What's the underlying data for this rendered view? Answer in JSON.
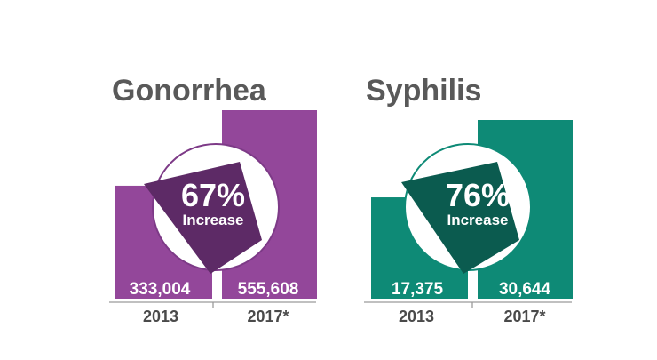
{
  "chart_data": [
    {
      "type": "bar",
      "title": "Gonorrhea",
      "categories": [
        "2013",
        "2017*"
      ],
      "values": [
        333004,
        555608
      ],
      "value_labels": [
        "333,004",
        "555,608"
      ],
      "callout": {
        "percent": "67%",
        "label": "Increase"
      },
      "colors": {
        "bar": "#93479a",
        "arrow": "#5d2a66",
        "circle_stroke": "#7d3a87"
      }
    },
    {
      "type": "bar",
      "title": "Syphilis",
      "categories": [
        "2013",
        "2017*"
      ],
      "values": [
        17375,
        30644
      ],
      "value_labels": [
        "17,375",
        "30,644"
      ],
      "callout": {
        "percent": "76%",
        "label": "Increase"
      },
      "colors": {
        "bar": "#0e8a76",
        "arrow": "#0b5b4f",
        "circle_stroke": "#0e8a76"
      }
    }
  ],
  "colors": {
    "title_text": "#595959",
    "axis": "#9a9a9a",
    "year_text": "#4a4a4a",
    "value_text": "#ffffff",
    "callout_text": "#ffffff"
  }
}
